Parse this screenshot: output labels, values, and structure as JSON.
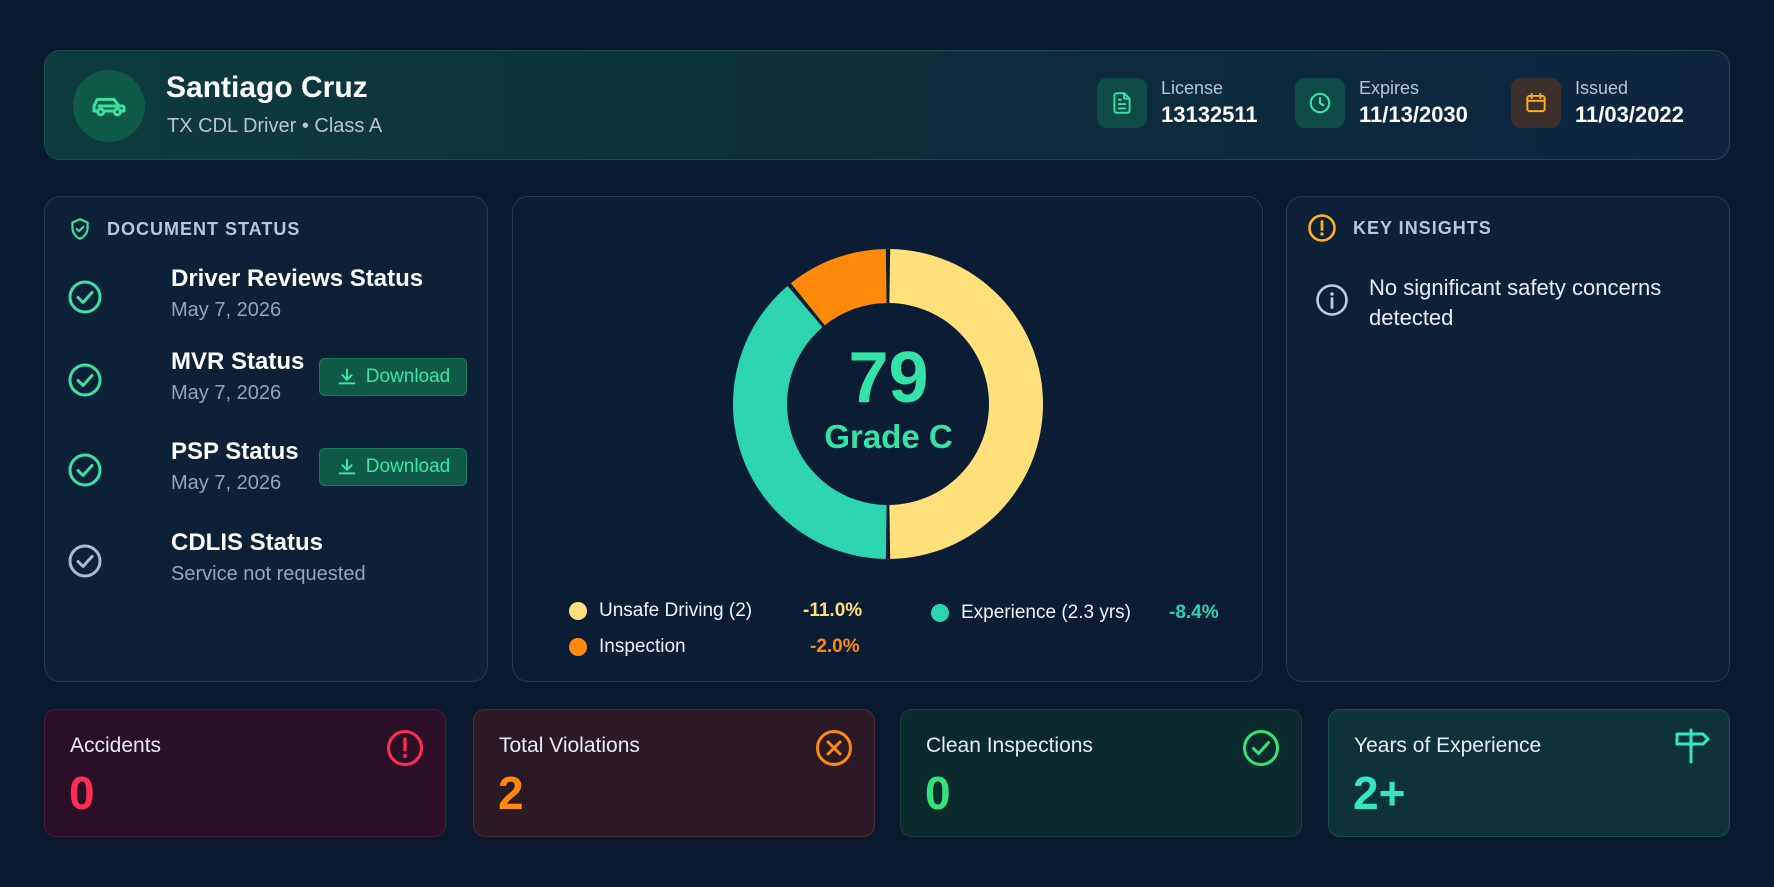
{
  "header": {
    "name": "Santiago Cruz",
    "subtitle": "TX CDL Driver • Class A",
    "license_label": "License",
    "license_value": "13132511",
    "expires_label": "Expires",
    "expires_value": "11/13/2030",
    "issued_label": "Issued",
    "issued_value": "11/03/2022"
  },
  "document_status": {
    "title": "DOCUMENT STATUS",
    "items": [
      {
        "title": "Driver Reviews Status",
        "sub": "May 7, 2026"
      },
      {
        "title": "MVR Status",
        "sub": "May 7, 2026",
        "button": "Download"
      },
      {
        "title": "PSP Status",
        "sub": "May 7, 2026",
        "button": "Download"
      },
      {
        "title": "CDLIS Status",
        "sub": "Service not requested"
      }
    ]
  },
  "score": {
    "value": "79",
    "grade": "Grade C"
  },
  "chart_data": {
    "type": "pie",
    "segments": [
      {
        "label": "Unsafe Driving (2)",
        "change": "-11.0%",
        "share": 0.5,
        "color": "#ffe07a"
      },
      {
        "label": "Experience (2.3 yrs)",
        "change": "-8.4%",
        "share": 0.39,
        "color": "#2dd4b0"
      },
      {
        "label": "Inspection",
        "change": "-2.0%",
        "share": 0.11,
        "color": "#ff8a0a"
      }
    ]
  },
  "insights": {
    "title": "KEY INSIGHTS",
    "text": "No significant safety concerns detected"
  },
  "stats": {
    "accidents_label": "Accidents",
    "accidents_value": "0",
    "violations_label": "Total Violations",
    "violations_value": "2",
    "inspections_label": "Clean Inspections",
    "inspections_value": "0",
    "experience_label": "Years of Experience",
    "experience_value": "2+"
  },
  "colors": {
    "accent_green": "#33e3a7",
    "accident_red": "#ff2d55",
    "violation_orange": "#ff8a0a",
    "experience_teal": "#35e6c4"
  }
}
